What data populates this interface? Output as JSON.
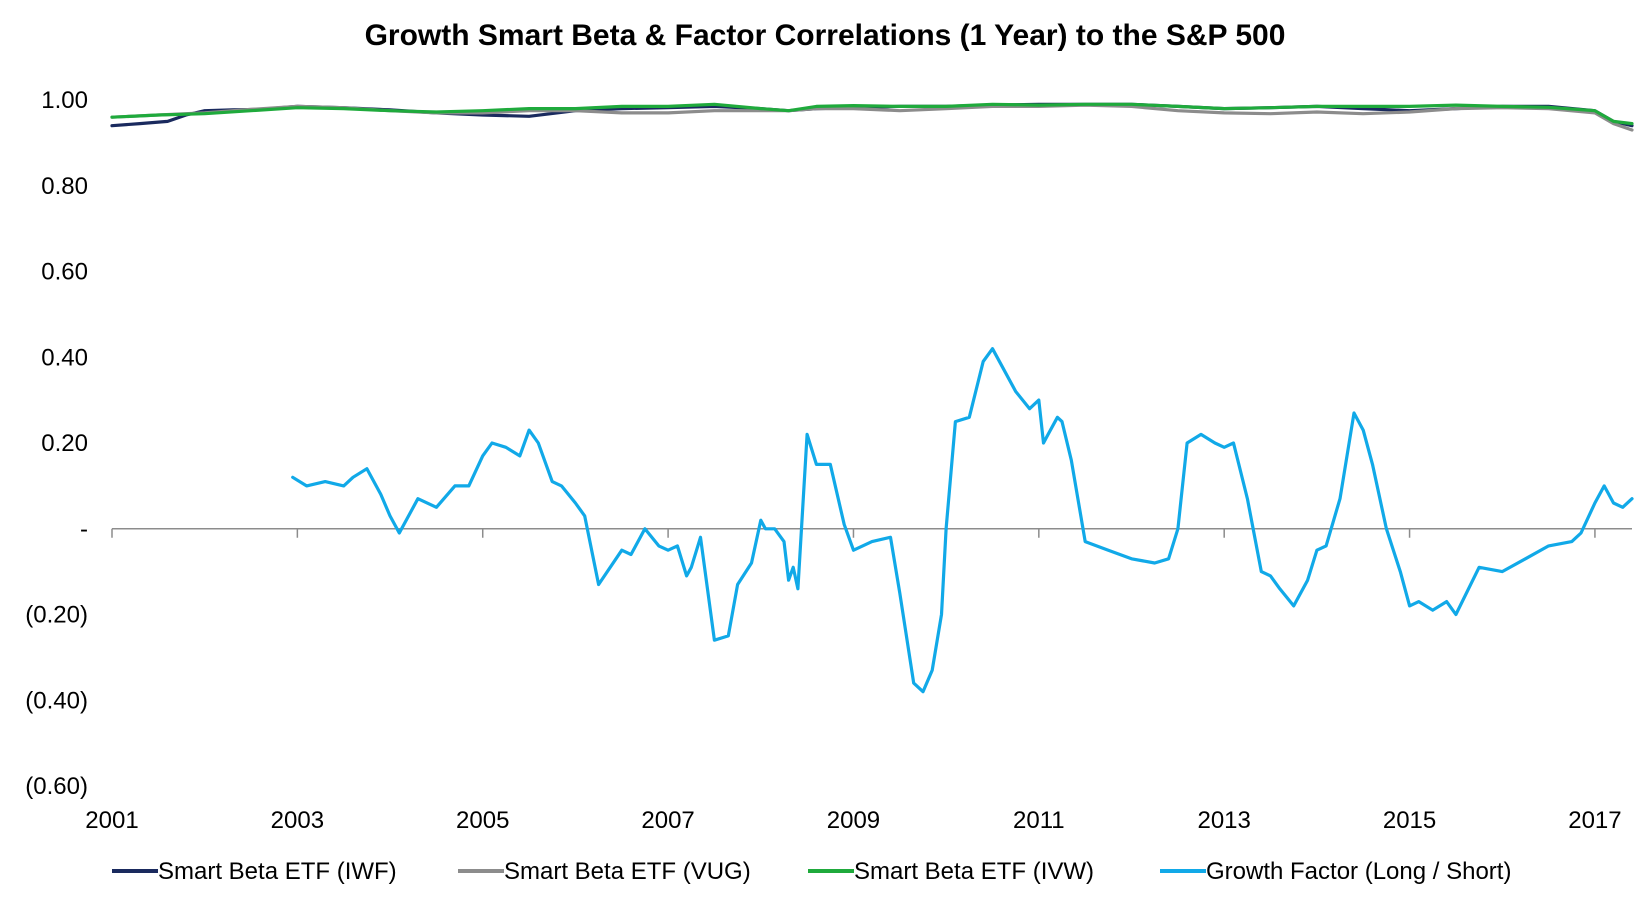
{
  "chart_data": {
    "type": "line",
    "title": "Growth Smart Beta & Factor Correlations (1 Year) to the S&P 500",
    "xlabel": "",
    "ylabel": "",
    "xlim": [
      2001,
      2017.4
    ],
    "ylim": [
      -0.6,
      1.0
    ],
    "x_ticks": [
      2001,
      2003,
      2005,
      2007,
      2009,
      2011,
      2013,
      2015,
      2017
    ],
    "x_tick_labels": [
      "2001",
      "2003",
      "2005",
      "2007",
      "2009",
      "2011",
      "2013",
      "2015",
      "2017"
    ],
    "y_ticks": [
      1.0,
      0.8,
      0.6,
      0.4,
      0.2,
      0.0,
      -0.2,
      -0.4,
      -0.6
    ],
    "y_tick_labels": [
      "1.00",
      "0.80",
      "0.60",
      "0.40",
      "0.20",
      "-",
      "(0.20)",
      "(0.40)",
      "(0.60)"
    ],
    "grid": false,
    "legend_position": "bottom",
    "series": [
      {
        "name": "Smart Beta ETF (IWF)",
        "color": "#1a2a5e",
        "x": [
          2001.0,
          2001.3,
          2001.6,
          2001.8,
          2002.0,
          2002.3,
          2002.6,
          2003.0,
          2003.5,
          2004.0,
          2004.5,
          2005.0,
          2005.5,
          2006.0,
          2006.5,
          2007.0,
          2007.5,
          2008.0,
          2008.3,
          2008.6,
          2009.0,
          2009.5,
          2010.0,
          2010.5,
          2011.0,
          2011.5,
          2012.0,
          2012.5,
          2013.0,
          2013.5,
          2014.0,
          2014.5,
          2015.0,
          2015.5,
          2016.0,
          2016.5,
          2017.0,
          2017.2,
          2017.4
        ],
        "y": [
          0.94,
          0.945,
          0.95,
          0.965,
          0.975,
          0.977,
          0.978,
          0.985,
          0.982,
          0.977,
          0.97,
          0.965,
          0.962,
          0.975,
          0.98,
          0.982,
          0.985,
          0.98,
          0.975,
          0.98,
          0.982,
          0.985,
          0.985,
          0.988,
          0.99,
          0.99,
          0.99,
          0.985,
          0.98,
          0.982,
          0.985,
          0.98,
          0.975,
          0.98,
          0.985,
          0.985,
          0.975,
          0.95,
          0.94
        ]
      },
      {
        "name": "Smart Beta ETF (VUG)",
        "color": "#8c8c8c",
        "x": [
          2001.0,
          2001.5,
          2002.0,
          2002.5,
          2003.0,
          2003.5,
          2004.0,
          2004.5,
          2005.0,
          2005.5,
          2006.0,
          2006.5,
          2007.0,
          2007.5,
          2008.0,
          2008.3,
          2008.6,
          2009.0,
          2009.5,
          2010.0,
          2010.5,
          2011.0,
          2011.5,
          2012.0,
          2012.5,
          2013.0,
          2013.5,
          2014.0,
          2014.5,
          2015.0,
          2015.5,
          2016.0,
          2016.5,
          2017.0,
          2017.2,
          2017.4
        ],
        "y": [
          0.96,
          0.965,
          0.97,
          0.978,
          0.985,
          0.982,
          0.975,
          0.97,
          0.97,
          0.975,
          0.975,
          0.97,
          0.97,
          0.975,
          0.975,
          0.975,
          0.98,
          0.98,
          0.975,
          0.98,
          0.985,
          0.985,
          0.988,
          0.985,
          0.975,
          0.97,
          0.968,
          0.972,
          0.968,
          0.972,
          0.98,
          0.982,
          0.98,
          0.97,
          0.945,
          0.93
        ]
      },
      {
        "name": "Smart Beta ETF (IVW)",
        "color": "#1faa3c",
        "x": [
          2001.0,
          2001.5,
          2002.0,
          2002.5,
          2003.0,
          2003.5,
          2004.0,
          2004.5,
          2005.0,
          2005.5,
          2006.0,
          2006.5,
          2007.0,
          2007.5,
          2008.0,
          2008.3,
          2008.6,
          2009.0,
          2009.5,
          2010.0,
          2010.5,
          2011.0,
          2011.5,
          2012.0,
          2012.5,
          2013.0,
          2013.5,
          2014.0,
          2014.5,
          2015.0,
          2015.5,
          2016.0,
          2016.5,
          2017.0,
          2017.2,
          2017.4
        ],
        "y": [
          0.96,
          0.965,
          0.968,
          0.975,
          0.982,
          0.98,
          0.975,
          0.972,
          0.975,
          0.98,
          0.98,
          0.985,
          0.985,
          0.99,
          0.98,
          0.975,
          0.985,
          0.987,
          0.985,
          0.985,
          0.99,
          0.988,
          0.99,
          0.99,
          0.985,
          0.98,
          0.982,
          0.985,
          0.985,
          0.985,
          0.988,
          0.985,
          0.983,
          0.975,
          0.95,
          0.945
        ]
      },
      {
        "name": "Growth Factor (Long / Short)",
        "color": "#11a9e8",
        "x": [
          2002.95,
          2003.1,
          2003.3,
          2003.5,
          2003.6,
          2003.75,
          2003.9,
          2004.0,
          2004.1,
          2004.3,
          2004.5,
          2004.7,
          2004.85,
          2005.0,
          2005.1,
          2005.25,
          2005.4,
          2005.5,
          2005.6,
          2005.75,
          2005.85,
          2006.0,
          2006.1,
          2006.25,
          2006.5,
          2006.6,
          2006.75,
          2006.9,
          2007.0,
          2007.1,
          2007.2,
          2007.25,
          2007.35,
          2007.5,
          2007.65,
          2007.75,
          2007.9,
          2008.0,
          2008.05,
          2008.15,
          2008.25,
          2008.3,
          2008.35,
          2008.4,
          2008.5,
          2008.6,
          2008.75,
          2008.9,
          2009.0,
          2009.2,
          2009.4,
          2009.5,
          2009.65,
          2009.75,
          2009.85,
          2009.95,
          2010.0,
          2010.1,
          2010.25,
          2010.4,
          2010.5,
          2010.6,
          2010.75,
          2010.9,
          2011.0,
          2011.05,
          2011.1,
          2011.2,
          2011.25,
          2011.35,
          2011.5,
          2011.75,
          2012.0,
          2012.25,
          2012.4,
          2012.5,
          2012.6,
          2012.75,
          2012.9,
          2013.0,
          2013.1,
          2013.25,
          2013.4,
          2013.5,
          2013.6,
          2013.75,
          2013.9,
          2014.0,
          2014.1,
          2014.25,
          2014.4,
          2014.5,
          2014.6,
          2014.75,
          2014.9,
          2015.0,
          2015.1,
          2015.25,
          2015.4,
          2015.5,
          2015.75,
          2016.0,
          2016.25,
          2016.5,
          2016.75,
          2016.85,
          2017.0,
          2017.1,
          2017.2,
          2017.3,
          2017.4
        ],
        "y": [
          0.12,
          0.1,
          0.11,
          0.1,
          0.12,
          0.14,
          0.08,
          0.03,
          -0.01,
          0.07,
          0.05,
          0.1,
          0.1,
          0.17,
          0.2,
          0.19,
          0.17,
          0.23,
          0.2,
          0.11,
          0.1,
          0.06,
          0.03,
          -0.13,
          -0.05,
          -0.06,
          0.0,
          -0.04,
          -0.05,
          -0.04,
          -0.11,
          -0.09,
          -0.02,
          -0.26,
          -0.25,
          -0.13,
          -0.08,
          0.02,
          0.0,
          0.0,
          -0.03,
          -0.12,
          -0.09,
          -0.14,
          0.22,
          0.15,
          0.15,
          0.01,
          -0.05,
          -0.03,
          -0.02,
          -0.15,
          -0.36,
          -0.38,
          -0.33,
          -0.2,
          0.0,
          0.25,
          0.26,
          0.39,
          0.42,
          0.38,
          0.32,
          0.28,
          0.3,
          0.2,
          0.22,
          0.26,
          0.25,
          0.16,
          -0.03,
          -0.05,
          -0.07,
          -0.08,
          -0.07,
          0.0,
          0.2,
          0.22,
          0.2,
          0.19,
          0.2,
          0.07,
          -0.1,
          -0.11,
          -0.14,
          -0.18,
          -0.12,
          -0.05,
          -0.04,
          0.07,
          0.27,
          0.23,
          0.15,
          0.0,
          -0.1,
          -0.18,
          -0.17,
          -0.19,
          -0.17,
          -0.2,
          -0.09,
          -0.1,
          -0.07,
          -0.04,
          -0.03,
          -0.01,
          0.06,
          0.1,
          0.06,
          0.05,
          0.07
        ]
      }
    ]
  }
}
